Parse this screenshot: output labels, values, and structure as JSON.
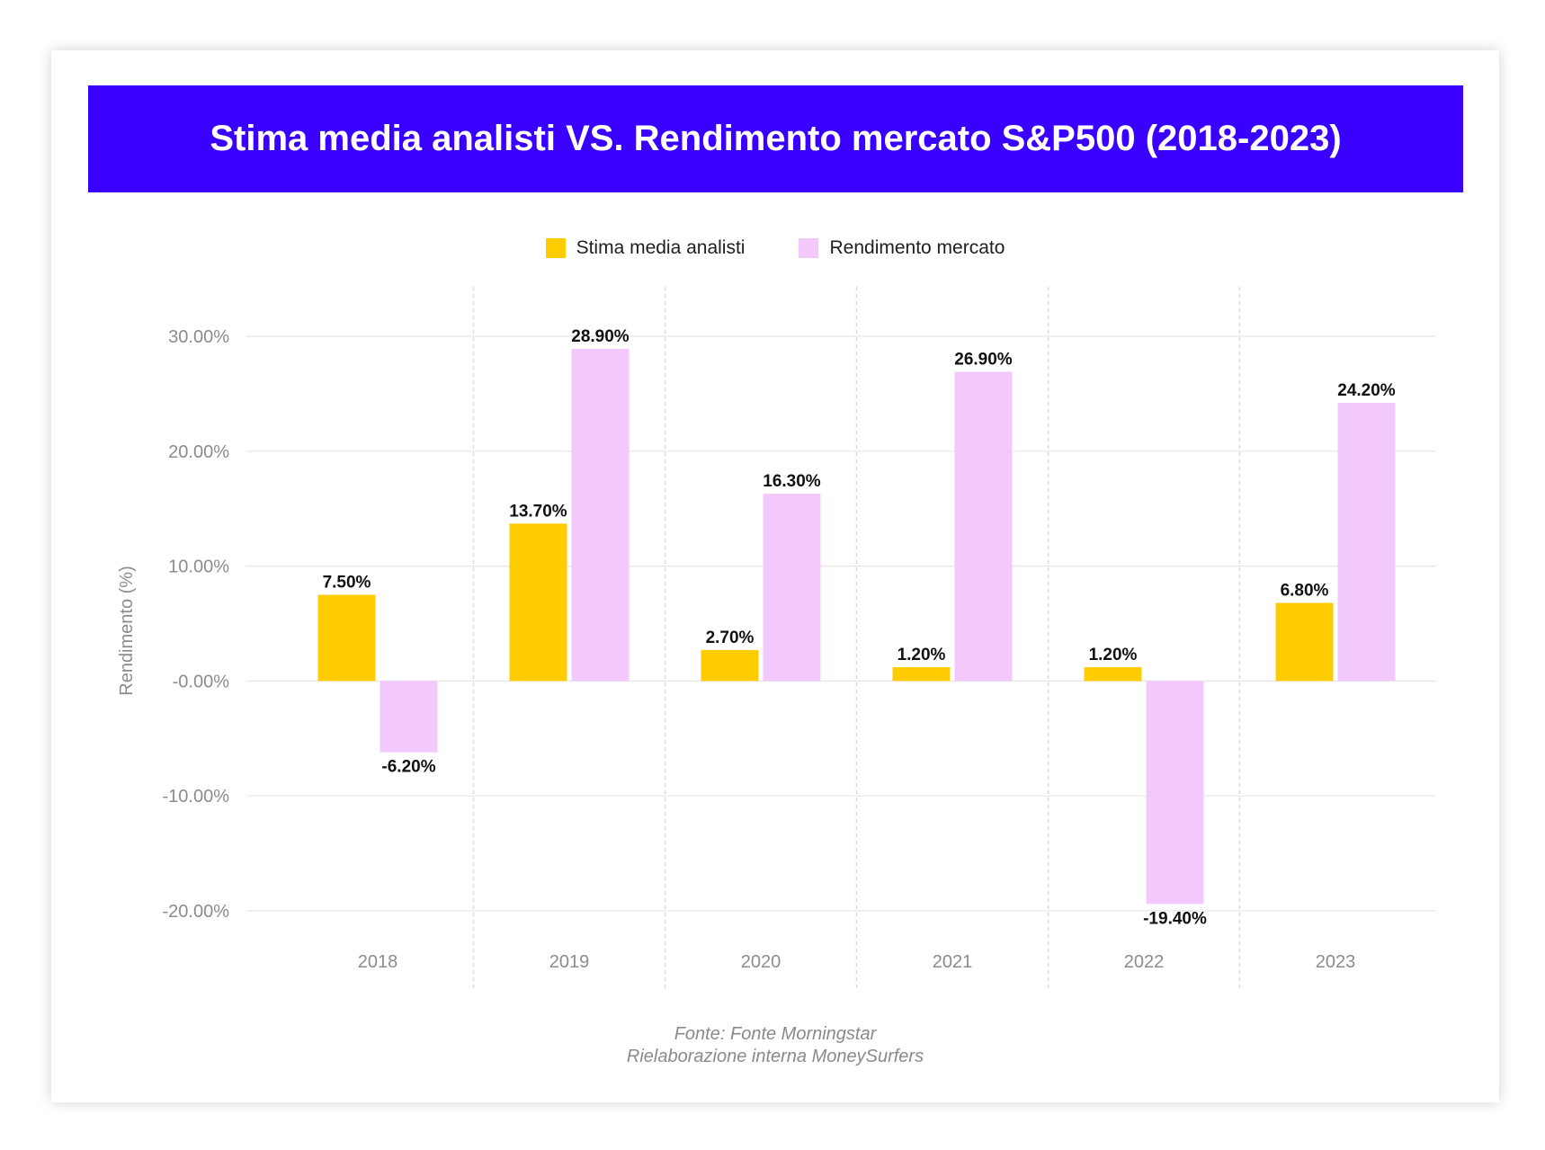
{
  "title": "Stima media analisti VS. Rendimento mercato S&P500 (2018-2023)",
  "colors": {
    "title_bg": "#3a00ff",
    "series_1": "#ffcc00",
    "series_2": "#f3c8fc"
  },
  "legend": [
    {
      "label": "Stima media analisti",
      "color": "#ffcc00"
    },
    {
      "label": "Rendimento mercato",
      "color": "#f3c8fc"
    }
  ],
  "source_lines": {
    "line1": "Fonte: Fonte Morningstar",
    "line2": "Rielaborazione interna MoneySurfers"
  },
  "chart_data": {
    "type": "bar",
    "title": "Stima media analisti VS. Rendimento mercato S&P500 (2018-2023)",
    "categories": [
      "2018",
      "2019",
      "2020",
      "2021",
      "2022",
      "2023"
    ],
    "series": [
      {
        "name": "Stima media analisti",
        "values": [
          7.5,
          13.7,
          2.7,
          1.2,
          1.2,
          6.8
        ],
        "labels": [
          "7.50%",
          "13.70%",
          "2.70%",
          "1.20%",
          "1.20%",
          "6.80%"
        ]
      },
      {
        "name": "Rendimento mercato",
        "values": [
          -6.2,
          28.9,
          16.3,
          26.9,
          -19.4,
          24.2
        ],
        "labels": [
          "-6.20%",
          "28.90%",
          "16.30%",
          "26.90%",
          "-19.40%",
          "24.20%"
        ]
      }
    ],
    "ylabel": "Rendimento (%)",
    "xlabel": "",
    "ylim": [
      -20,
      30
    ],
    "yticks": [
      30,
      20,
      10,
      0,
      -10,
      -20
    ],
    "ytick_labels": [
      "30.00%",
      "20.00%",
      "10.00%",
      "-0.00%",
      "-10.00%",
      "-20.00%"
    ],
    "grid": true,
    "legend_position": "top-center"
  }
}
